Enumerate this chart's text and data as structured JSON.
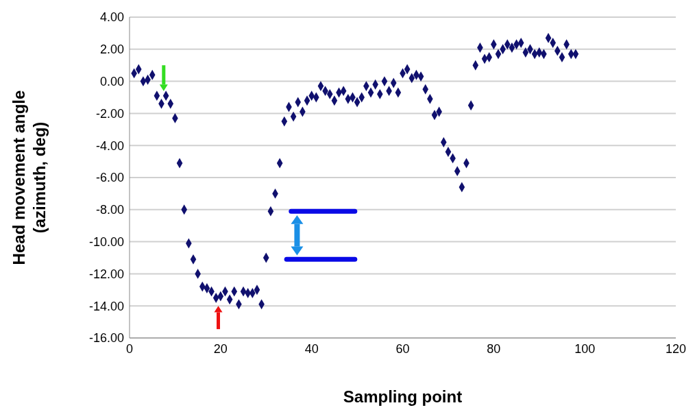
{
  "chart_data": {
    "type": "scatter",
    "xlabel": "Sampling point",
    "ylabel": "Head movement angle\n(azimuth, deg)",
    "x": [
      1,
      2,
      3,
      4,
      5,
      6,
      7,
      8,
      9,
      10,
      11,
      12,
      13,
      14,
      15,
      16,
      17,
      18,
      19,
      20,
      21,
      22,
      23,
      24,
      25,
      26,
      27,
      28,
      29,
      30,
      31,
      32,
      33,
      34,
      35,
      36,
      37,
      38,
      39,
      40,
      41,
      42,
      43,
      44,
      45,
      46,
      47,
      48,
      49,
      50,
      51,
      52,
      53,
      54,
      55,
      56,
      57,
      58,
      59,
      60,
      61,
      62,
      63,
      64,
      65,
      66,
      67,
      68,
      69,
      70,
      71,
      72,
      73,
      74,
      75,
      76,
      77,
      78,
      79,
      80,
      81,
      82,
      83,
      84,
      85,
      86,
      87,
      88,
      89,
      90,
      91,
      92,
      93,
      94,
      95,
      96,
      97,
      98
    ],
    "series": [
      {
        "color": "#10106e",
        "values": [
          0.5,
          0.75,
          0.0,
          0.1,
          0.4,
          -0.9,
          -1.4,
          -0.9,
          -1.4,
          -2.3,
          -5.1,
          -8.0,
          -10.1,
          -11.1,
          -12.0,
          -12.8,
          -12.9,
          -13.1,
          -13.5,
          -13.4,
          -13.1,
          -13.6,
          -13.1,
          -13.9,
          -13.1,
          -13.2,
          -13.2,
          -13.0,
          -13.9,
          -11.0,
          -8.1,
          -7.0,
          -5.1,
          -2.5,
          -1.6,
          -2.2,
          -1.3,
          -1.9,
          -1.2,
          -0.9,
          -1.0,
          -0.3,
          -0.6,
          -0.8,
          -1.2,
          -0.7,
          -0.6,
          -1.1,
          -1.0,
          -1.3,
          -1.0,
          -0.3,
          -0.7,
          -0.2,
          -0.8,
          0.0,
          -0.6,
          -0.1,
          -0.7,
          0.5,
          0.75,
          0.2,
          0.4,
          0.3,
          -0.5,
          -1.1,
          -2.1,
          -1.9,
          -3.8,
          -4.4,
          -4.8,
          -5.6,
          -6.6,
          -5.1,
          -1.5,
          1.0,
          2.1,
          1.4,
          1.5,
          2.3,
          1.7,
          2.0,
          2.3,
          2.1,
          2.3,
          2.4,
          1.8,
          2.0,
          1.7,
          1.8,
          1.7,
          2.7,
          2.4,
          1.9,
          1.5,
          2.3,
          1.7,
          1.7
        ]
      }
    ],
    "xlim": [
      0,
      120
    ],
    "xticks": [
      0,
      20,
      40,
      60,
      80,
      100,
      120
    ],
    "ylim": [
      -16,
      4
    ],
    "yticks": [
      {
        "value": -16,
        "label": "-16.00"
      },
      {
        "value": -14,
        "label": "-14.00"
      },
      {
        "value": -12,
        "label": "-12.00"
      },
      {
        "value": -10,
        "label": "-10.00"
      },
      {
        "value": -8,
        "label": "-8.00"
      },
      {
        "value": -6,
        "label": "-6.00"
      },
      {
        "value": -4,
        "label": "-4.00"
      },
      {
        "value": -2,
        "label": "-2.00"
      },
      {
        "value": 0,
        "label": "0.00"
      },
      {
        "value": 2,
        "label": "2.00"
      },
      {
        "value": 4,
        "label": "4.00"
      }
    ],
    "grid": "y",
    "marker": "diamond"
  }
}
